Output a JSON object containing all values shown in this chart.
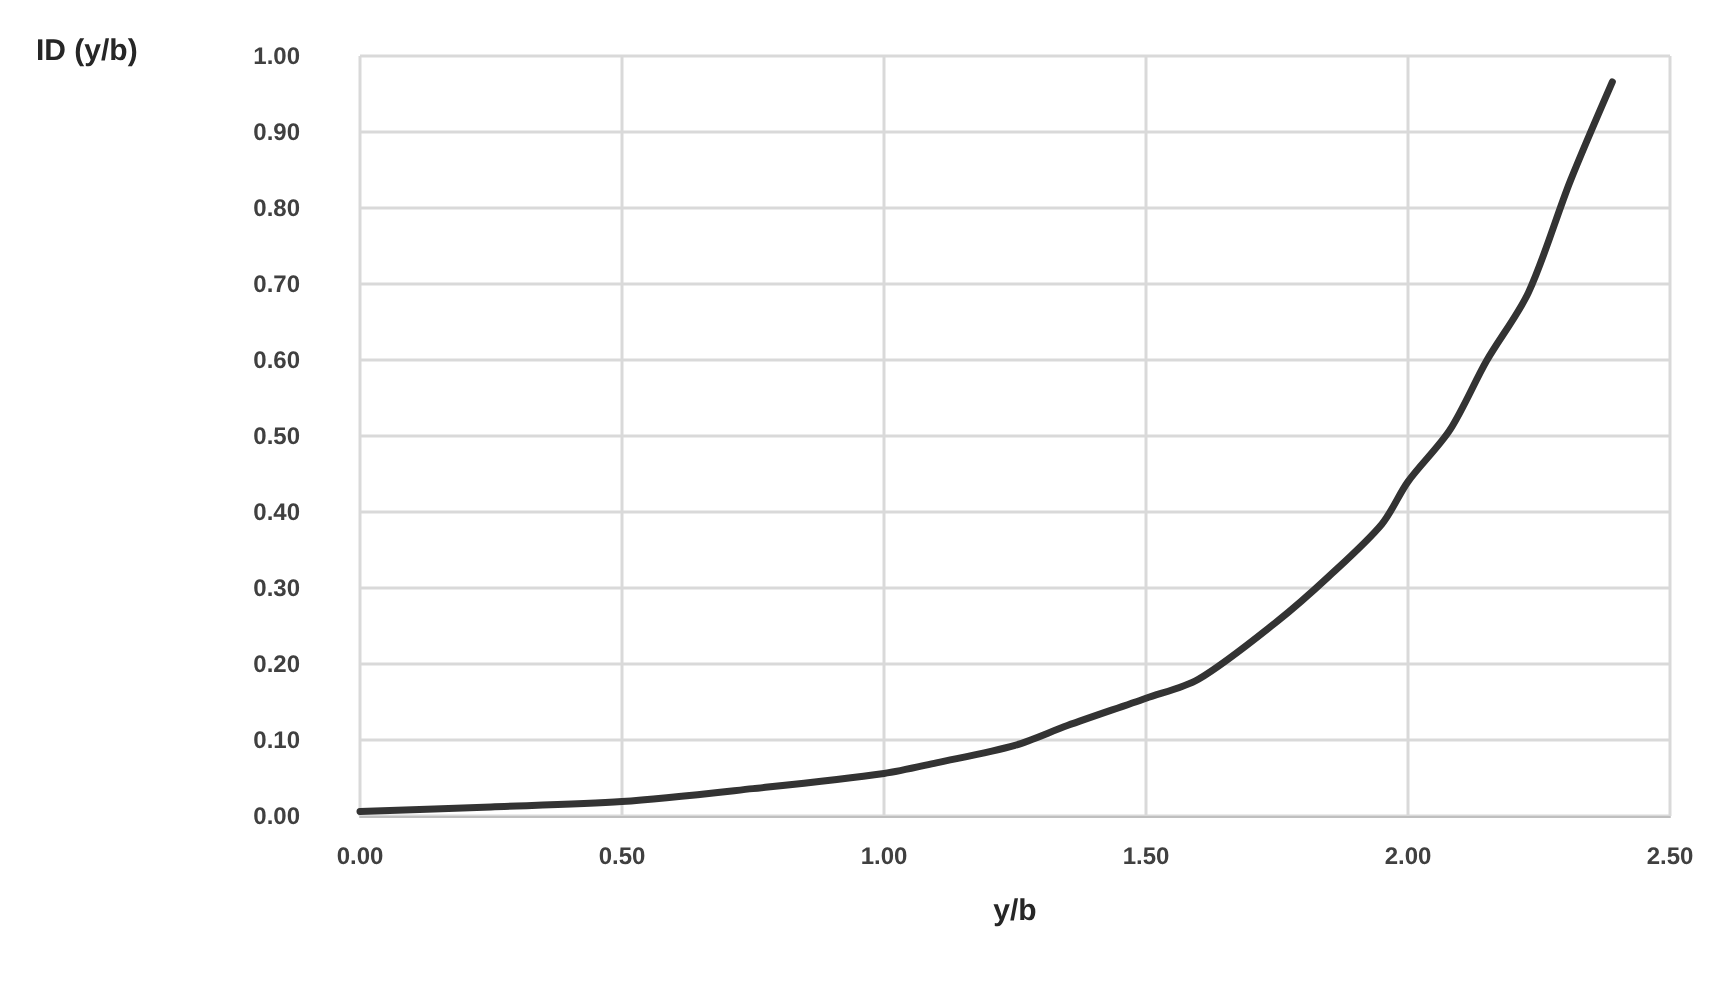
{
  "chart_data": {
    "type": "line",
    "xlabel": "y/b",
    "ylabel": "ID (y/b)",
    "x": [
      0,
      0.25,
      0.5,
      0.75,
      1.0,
      1.1,
      1.25,
      1.35,
      1.5,
      1.6,
      1.75,
      1.85,
      1.95,
      2.0,
      2.08,
      2.15,
      2.23,
      2.31,
      2.39
    ],
    "series": [
      {
        "color": "#333333",
        "values": [
          0.006,
          0.012,
          0.019,
          0.036,
          0.056,
          0.07,
          0.093,
          0.119,
          0.155,
          0.18,
          0.256,
          0.316,
          0.384,
          0.44,
          0.508,
          0.599,
          0.689,
          0.836,
          0.966
        ]
      }
    ],
    "xlim": [
      0,
      2.5
    ],
    "xticks": [
      {
        "value": 0,
        "label": "0.00"
      },
      {
        "value": 0.5,
        "label": "0.50"
      },
      {
        "value": 1,
        "label": "1.00"
      },
      {
        "value": 1.5,
        "label": "1.50"
      },
      {
        "value": 2,
        "label": "2.00"
      },
      {
        "value": 2.5,
        "label": "2.50"
      }
    ],
    "ylim": [
      0,
      1
    ],
    "yticks": [
      {
        "value": 0,
        "label": "0.00"
      },
      {
        "value": 0.1,
        "label": "0.10"
      },
      {
        "value": 0.2,
        "label": "0.20"
      },
      {
        "value": 0.3,
        "label": "0.30"
      },
      {
        "value": 0.4,
        "label": "0.40"
      },
      {
        "value": 0.5,
        "label": "0.50"
      },
      {
        "value": 0.6,
        "label": "0.60"
      },
      {
        "value": 0.7,
        "label": "0.70"
      },
      {
        "value": 0.8,
        "label": "0.80"
      },
      {
        "value": 0.9,
        "label": "0.90"
      },
      {
        "value": 1,
        "label": "1.00"
      }
    ],
    "grid": true,
    "marker": "none",
    "line_style": "solid"
  }
}
